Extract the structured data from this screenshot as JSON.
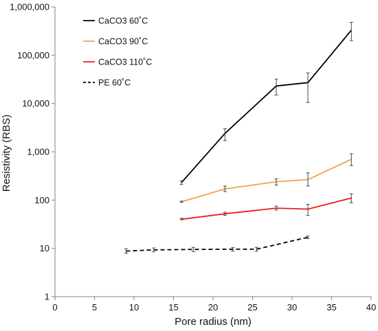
{
  "chart_data": {
    "type": "line",
    "title": "",
    "xlabel": "Pore radius (nm)",
    "ylabel": "Resistivity (RBS)",
    "xlim": [
      0,
      40
    ],
    "ylim": [
      1,
      1000000
    ],
    "yscale": "log",
    "x_ticks": [
      0,
      5,
      10,
      15,
      20,
      25,
      30,
      35,
      40
    ],
    "x_tick_labels": [
      "0",
      "5",
      "10",
      "15",
      "20",
      "25",
      "30",
      "35",
      "40"
    ],
    "y_ticks": [
      1,
      10,
      100,
      1000,
      10000,
      100000,
      1000000
    ],
    "y_tick_labels": [
      "1",
      "10",
      "100",
      "1,000",
      "10,000",
      "100,000",
      "1,000,000"
    ],
    "grid": false,
    "legend_position": "top-left",
    "series": [
      {
        "name": "CaCO3 60˚C",
        "color": "#000000",
        "dash": "solid",
        "x": [
          16,
          21.5,
          28,
          32,
          37.5
        ],
        "y": [
          230,
          2400,
          23000,
          27000,
          330000
        ],
        "err_low": [
          210,
          1700,
          15000,
          10500,
          200000
        ],
        "err_high": [
          250,
          3000,
          32000,
          43000,
          480000
        ]
      },
      {
        "name": "CaCO3 90˚C",
        "color": "#f0a14e",
        "dash": "solid",
        "x": [
          16,
          21.5,
          28,
          32,
          37.5
        ],
        "y": [
          92,
          170,
          240,
          265,
          700
        ],
        "err_low": [
          90,
          150,
          205,
          195,
          520
        ],
        "err_high": [
          95,
          195,
          275,
          365,
          910
        ]
      },
      {
        "name": "CaCO3 110˚C",
        "color": "#ee1c1c",
        "dash": "solid",
        "x": [
          16,
          21.5,
          28,
          32,
          37.5
        ],
        "y": [
          40,
          52,
          68,
          65,
          110
        ],
        "err_low": [
          39,
          48,
          62,
          48,
          88
        ],
        "err_high": [
          42,
          56,
          75,
          82,
          135
        ]
      },
      {
        "name": "PE 60˚C",
        "color": "#000000",
        "dash": "dashed",
        "x": [
          9,
          12.5,
          17.5,
          22.5,
          25.5,
          32
        ],
        "y": [
          8.8,
          9.3,
          9.5,
          9.6,
          9.6,
          17
        ],
        "err_low": [
          7.9,
          8.5,
          8.6,
          8.8,
          8.7,
          16
        ],
        "err_high": [
          9.8,
          10.2,
          10.5,
          10.4,
          10.5,
          18
        ]
      }
    ]
  }
}
